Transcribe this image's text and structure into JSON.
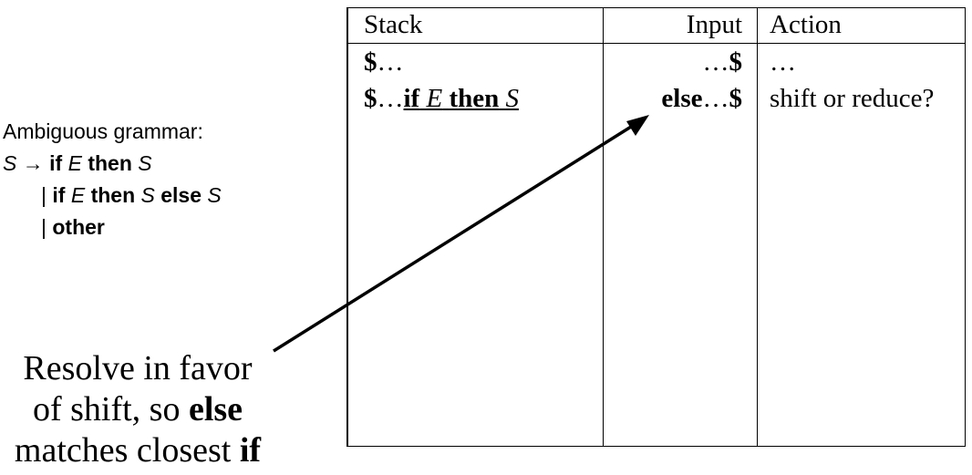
{
  "table": {
    "headers": {
      "stack": "Stack",
      "input": "Input",
      "action": "Action"
    },
    "rows": [
      {
        "stack": {
          "dollar": "$",
          "dots": "…"
        },
        "input": {
          "dots": "…",
          "dollar": "$"
        },
        "action": "…"
      },
      {
        "stack": {
          "dollar": "$",
          "dots": "…",
          "if": "if",
          "E": "E",
          "then": "then",
          "S": "S"
        },
        "input": {
          "else": "else",
          "dots": "…",
          "dollar": "$"
        },
        "action": "shift or reduce?"
      }
    ]
  },
  "grammar": {
    "title": "Ambiguous grammar:",
    "line1": {
      "S": "S",
      "arrow": "→",
      "if": "if",
      "E": "E",
      "then": "then",
      "S2": "S"
    },
    "line2": {
      "bar": "|",
      "if": "if",
      "E": "E",
      "then": "then",
      "S": "S",
      "else": "else",
      "S2": "S"
    },
    "line3": {
      "bar": "|",
      "other": "other"
    }
  },
  "caption": {
    "l1": "Resolve in favor",
    "l2_pre": "of shift, so",
    "l2_bold": "else",
    "l3_pre": "matches closest",
    "l3_bold": "if"
  }
}
